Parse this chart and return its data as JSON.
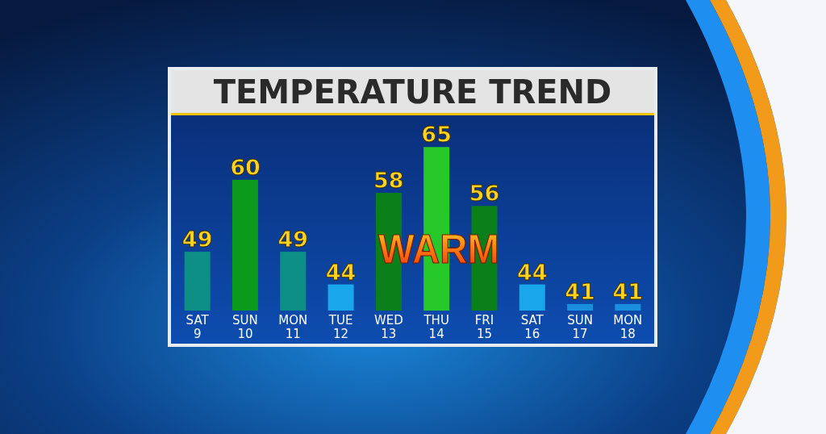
{
  "chart_data": {
    "type": "bar",
    "title": "TEMPERATURE TREND",
    "categories": [
      "SAT 9",
      "SUN 10",
      "MON 11",
      "TUE 12",
      "WED 13",
      "THU 14",
      "FRI 15",
      "SAT 16",
      "SUN 17",
      "MON 18"
    ],
    "values": [
      49,
      60,
      49,
      44,
      58,
      65,
      56,
      44,
      41,
      41
    ],
    "colors": [
      "#0e8f86",
      "#0b9a1c",
      "#0e8f86",
      "#1aa6ea",
      "#0b7f1a",
      "#27c92a",
      "#0b7f1a",
      "#1aa6ea",
      "#1a8fe0",
      "#1a8fe0"
    ],
    "ylim": [
      40,
      69.6
    ],
    "data_labels": true,
    "annotations": [
      "WARM"
    ]
  }
}
